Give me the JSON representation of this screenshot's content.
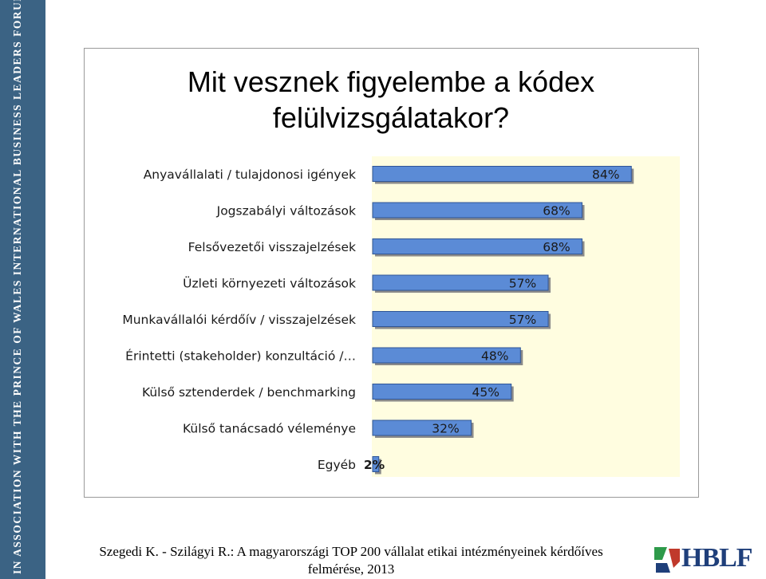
{
  "side_banner": "IN ASSOCIATION WITH THE PRINCE OF WALES INTERNATIONAL BUSINESS LEADERS FORUM",
  "slide": {
    "title_line1": "Mit vesznek figyelembe a kódex",
    "title_line2": "felülvizsgálatakor?"
  },
  "chart_data": {
    "type": "bar",
    "orientation": "horizontal",
    "categories": [
      "Anyavállalati / tulajdonosi igények",
      "Jogszabályi változások",
      "Felsővezetői visszajelzések",
      "Üzleti környezeti változások",
      "Munkavállalói kérdőív / visszajelzések",
      "Érintetti (stakeholder) konzultáció /…",
      "Külső sztenderdek / benchmarking",
      "Külső tanácsadó véleménye",
      "Egyéb"
    ],
    "values": [
      84,
      68,
      68,
      57,
      57,
      48,
      45,
      32,
      2
    ],
    "value_labels": [
      "84%",
      "68%",
      "68%",
      "57%",
      "57%",
      "48%",
      "45%",
      "32%",
      "2%"
    ],
    "xlim": [
      0,
      100
    ],
    "grid": false,
    "legend": "none",
    "colors": {
      "bar_fill": "#5b8bd6",
      "bar_edge": "#2f5597",
      "bar_shadow": "#8a8a8a",
      "plot_background": "#fffde0"
    }
  },
  "footer": {
    "line1": "Szegedi K. - Szilágyi R.: A magyarországi TOP 200 vállalat etikai intézményeinek kérdőíves",
    "line2": "felmérése, 2013"
  },
  "logo": {
    "text": "HBLF",
    "colors": {
      "green": "#2e9a4a",
      "red": "#c0392b",
      "blue": "#1f3f7a"
    }
  }
}
